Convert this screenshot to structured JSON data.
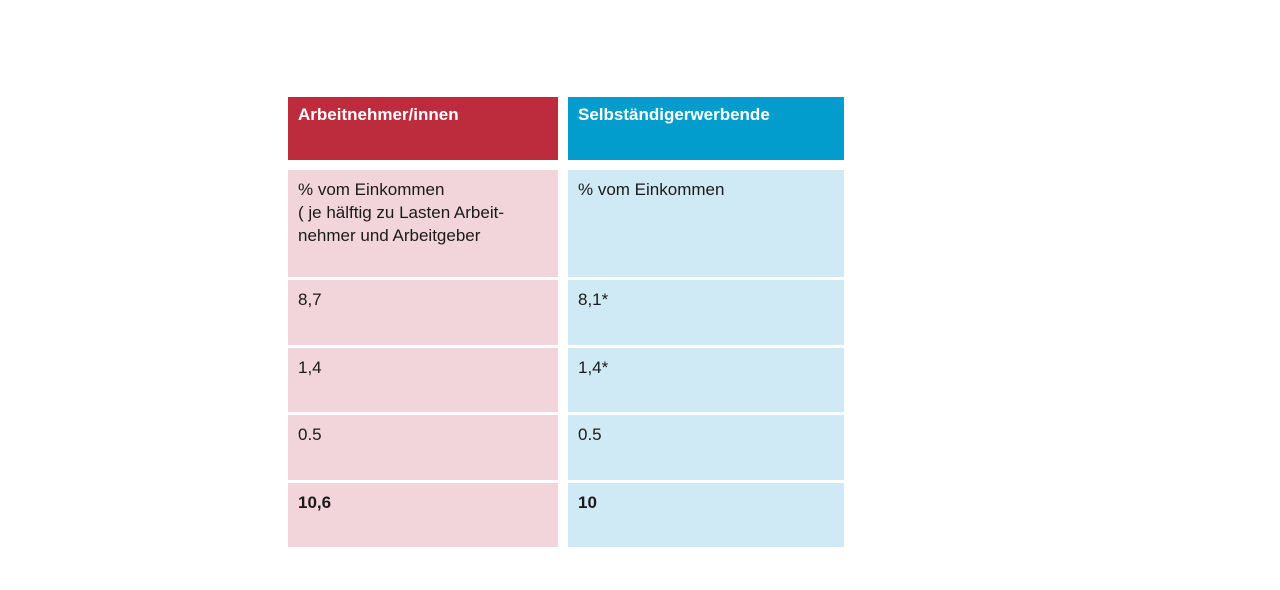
{
  "columns": [
    {
      "header": "Arbeitnehmer/innen",
      "header_color": "#bd2c3c",
      "cell_color": "#f2d5da",
      "rows": [
        [
          "% vom Einkommen",
          "( je hälftig zu Lasten Arbeit-",
          "nehmer und Arbeitgeber"
        ],
        [
          "8,7"
        ],
        [
          "1,4"
        ],
        [
          "0.5"
        ],
        [
          "10,6"
        ]
      ]
    },
    {
      "header": "Selbständigerwerbende",
      "header_color": "#029dcc",
      "cell_color": "#d0eaf5",
      "rows": [
        [
          "% vom Einkommen"
        ],
        [
          "8,1*"
        ],
        [
          "1,4*"
        ],
        [
          "0.5"
        ],
        [
          "10"
        ]
      ]
    }
  ]
}
